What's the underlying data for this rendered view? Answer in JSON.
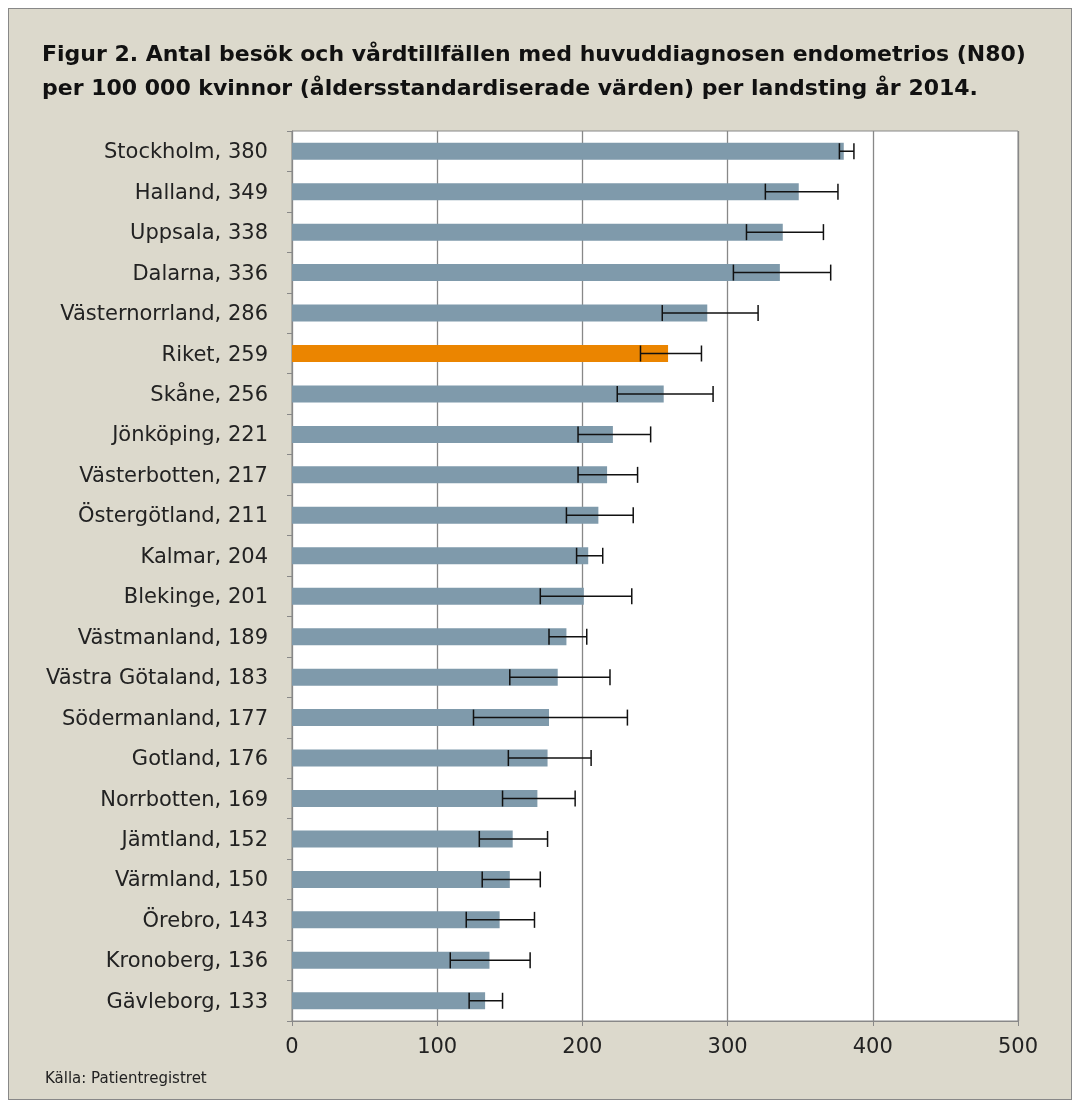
{
  "chart_data": {
    "type": "bar",
    "orientation": "horizontal",
    "title": "Figur 2. Antal besök och vårdtillfällen med huvuddiagnosen endometrios (N80) per 100 000 kvinnor (åldersstandardiserade värden) per landsting år 2014.",
    "categories": [
      "Stockholm, 380",
      "Halland, 349",
      "Uppsala, 338",
      "Dalarna, 336",
      "Västernorrland, 286",
      "Riket, 259",
      "Skåne, 256",
      "Jönköping, 221",
      "Västerbotten, 217",
      "Östergötland, 211",
      "Kalmar, 204",
      "Blekinge, 201",
      "Västmanland, 189",
      "Västra Götaland, 183",
      "Södermanland, 177",
      "Gotland, 176",
      "Norrbotten, 169",
      "Jämtland, 152",
      "Värmland, 150",
      "Örebro, 143",
      "Kronoberg, 136",
      "Gävleborg, 133"
    ],
    "values": [
      380,
      349,
      338,
      336,
      286,
      259,
      256,
      221,
      217,
      211,
      204,
      201,
      189,
      183,
      177,
      176,
      169,
      152,
      150,
      143,
      136,
      133
    ],
    "colors": [
      "#7f9aab",
      "#7f9aab",
      "#7f9aab",
      "#7f9aab",
      "#7f9aab",
      "#eb8500",
      "#7f9aab",
      "#7f9aab",
      "#7f9aab",
      "#7f9aab",
      "#7f9aab",
      "#7f9aab",
      "#7f9aab",
      "#7f9aab",
      "#7f9aab",
      "#7f9aab",
      "#7f9aab",
      "#7f9aab",
      "#7f9aab",
      "#7f9aab",
      "#7f9aab",
      "#7f9aab"
    ],
    "errors": [
      [
        377,
        387
      ],
      [
        326,
        376
      ],
      [
        313,
        366
      ],
      [
        304,
        371
      ],
      [
        255,
        321
      ],
      [
        240,
        282
      ],
      [
        224,
        290
      ],
      [
        197,
        247
      ],
      [
        197,
        238
      ],
      [
        189,
        235
      ],
      [
        196,
        214
      ],
      [
        171,
        234
      ],
      [
        177,
        203
      ],
      [
        150,
        219
      ],
      [
        125,
        231
      ],
      [
        149,
        206
      ],
      [
        145,
        195
      ],
      [
        129,
        176
      ],
      [
        131,
        171
      ],
      [
        120,
        167
      ],
      [
        109,
        164
      ],
      [
        122,
        145
      ]
    ],
    "xlim": [
      0,
      500
    ],
    "xticks": [
      0,
      100,
      200,
      300,
      400,
      500
    ],
    "grid": "x",
    "annotations": [
      "Källa: Patientregistret"
    ]
  }
}
